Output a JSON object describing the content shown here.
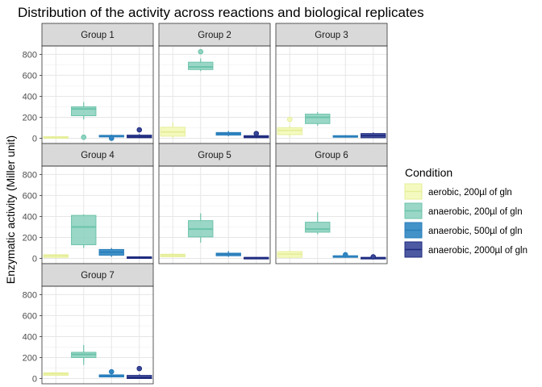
{
  "chart_data": {
    "type": "boxplot",
    "title": "Distribution of the activity across reactions and biological replicates",
    "xlabel": "",
    "ylabel": "Enzymatic activity (Miller unit)",
    "ylim": [
      -50,
      880
    ],
    "yticks": [
      0,
      200,
      400,
      600,
      800
    ],
    "grid": true,
    "legend": {
      "title": "Condition",
      "placement": "right",
      "entries": [
        {
          "label": "aerobic, 200µl of gln",
          "fill": "#f3f9b8",
          "stroke": "#e6ee9a"
        },
        {
          "label": "anaerobic, 200µl of gln",
          "fill": "#8fd3c0",
          "stroke": "#6cc3aa"
        },
        {
          "label": "anaerobic, 500µl of gln",
          "fill": "#2f86c2",
          "stroke": "#2a7fbb"
        },
        {
          "label": "anaerobic, 2000µl of gln",
          "fill": "#3a4797",
          "stroke": "#1e2b7f"
        }
      ]
    },
    "panels": [
      {
        "name": "Group 1",
        "boxes": [
          {
            "q1": 5,
            "median": 10,
            "q3": 15,
            "wlo": 0,
            "whi": 20,
            "outliers": []
          },
          {
            "q1": 215,
            "median": 280,
            "q3": 300,
            "wlo": 180,
            "whi": 345,
            "outliers": [
              10
            ]
          },
          {
            "q1": 15,
            "median": 22,
            "q3": 28,
            "wlo": 10,
            "whi": 35,
            "outliers": [
              0
            ]
          },
          {
            "q1": 5,
            "median": 15,
            "q3": 30,
            "wlo": 0,
            "whi": 40,
            "outliers": [
              80
            ]
          }
        ]
      },
      {
        "name": "Group 2",
        "boxes": [
          {
            "q1": 20,
            "median": 60,
            "q3": 105,
            "wlo": 0,
            "whi": 150,
            "outliers": []
          },
          {
            "q1": 655,
            "median": 680,
            "q3": 725,
            "wlo": 640,
            "whi": 760,
            "outliers": [
              825
            ]
          },
          {
            "q1": 30,
            "median": 45,
            "q3": 55,
            "wlo": 20,
            "whi": 70,
            "outliers": []
          },
          {
            "q1": 5,
            "median": 12,
            "q3": 25,
            "wlo": 0,
            "whi": 35,
            "outliers": [
              45
            ]
          }
        ]
      },
      {
        "name": "Group 3",
        "boxes": [
          {
            "q1": 35,
            "median": 75,
            "q3": 100,
            "wlo": 10,
            "whi": 120,
            "outliers": [
              180
            ]
          },
          {
            "q1": 140,
            "median": 200,
            "q3": 230,
            "wlo": 120,
            "whi": 250,
            "outliers": []
          },
          {
            "q1": 10,
            "median": 18,
            "q3": 25,
            "wlo": 5,
            "whi": 30,
            "outliers": []
          },
          {
            "q1": 5,
            "median": 25,
            "q3": 45,
            "wlo": 0,
            "whi": 55,
            "outliers": []
          }
        ]
      },
      {
        "name": "Group 4",
        "boxes": [
          {
            "q1": 10,
            "median": 25,
            "q3": 35,
            "wlo": 0,
            "whi": 45,
            "outliers": []
          },
          {
            "q1": 130,
            "median": 300,
            "q3": 410,
            "wlo": 100,
            "whi": 420,
            "outliers": []
          },
          {
            "q1": 30,
            "median": 60,
            "q3": 85,
            "wlo": 15,
            "whi": 100,
            "outliers": []
          },
          {
            "q1": 5,
            "median": 10,
            "q3": 15,
            "wlo": 0,
            "whi": 20,
            "outliers": []
          }
        ]
      },
      {
        "name": "Group 5",
        "boxes": [
          {
            "q1": 15,
            "median": 30,
            "q3": 40,
            "wlo": 10,
            "whi": 50,
            "outliers": []
          },
          {
            "q1": 205,
            "median": 280,
            "q3": 360,
            "wlo": 150,
            "whi": 430,
            "outliers": []
          },
          {
            "q1": 25,
            "median": 40,
            "q3": 50,
            "wlo": 15,
            "whi": 70,
            "outliers": []
          },
          {
            "q1": 0,
            "median": 5,
            "q3": 10,
            "wlo": 0,
            "whi": 12,
            "outliers": []
          }
        ]
      },
      {
        "name": "Group 6",
        "boxes": [
          {
            "q1": 10,
            "median": 40,
            "q3": 65,
            "wlo": 0,
            "whi": 75,
            "outliers": []
          },
          {
            "q1": 250,
            "median": 280,
            "q3": 345,
            "wlo": 230,
            "whi": 440,
            "outliers": []
          },
          {
            "q1": 10,
            "median": 20,
            "q3": 25,
            "wlo": 5,
            "whi": 30,
            "outliers": [
              35
            ]
          },
          {
            "q1": 0,
            "median": 5,
            "q3": 10,
            "wlo": 0,
            "whi": 15,
            "outliers": [
              15
            ]
          }
        ]
      },
      {
        "name": "Group 7",
        "boxes": [
          {
            "q1": 30,
            "median": 45,
            "q3": 55,
            "wlo": 25,
            "whi": 60,
            "outliers": []
          },
          {
            "q1": 200,
            "median": 230,
            "q3": 250,
            "wlo": 130,
            "whi": 320,
            "outliers": []
          },
          {
            "q1": 15,
            "median": 25,
            "q3": 35,
            "wlo": 10,
            "whi": 40,
            "outliers": [
              65
            ]
          },
          {
            "q1": 0,
            "median": 10,
            "q3": 30,
            "wlo": 0,
            "whi": 40,
            "outliers": [
              95
            ]
          }
        ]
      }
    ]
  }
}
